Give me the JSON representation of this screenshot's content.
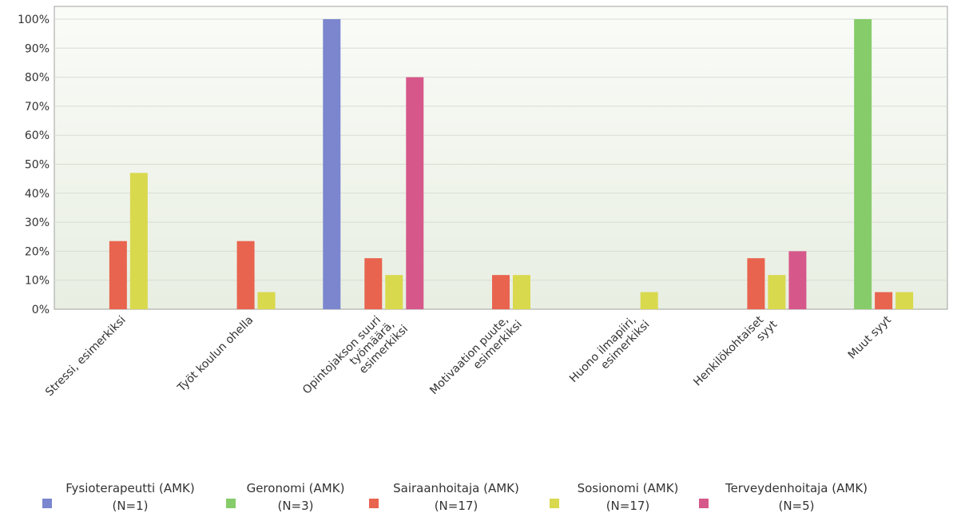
{
  "chart_data": {
    "type": "bar",
    "categories": [
      [
        "Stressi, esimerkiksi"
      ],
      [
        "Työt koulun ohella"
      ],
      [
        "Opintojakson suuri",
        "työmäärä,",
        "esimerkiksi"
      ],
      [
        "Motivaation puute,",
        "esimerkiksi"
      ],
      [
        "Huono ilmapiiri,",
        "esimerkiksi"
      ],
      [
        "Henkilökohtaiset",
        "syyt"
      ],
      [
        "Muut syyt"
      ]
    ],
    "series": [
      {
        "name": "Fysioterapeutti (AMK)",
        "n_label": "(N=1)",
        "color": "#7b86cf",
        "values": [
          0,
          0,
          100,
          0,
          0,
          0,
          0
        ]
      },
      {
        "name": "Geronomi (AMK)",
        "n_label": "(N=3)",
        "color": "#86cc6a",
        "values": [
          0,
          0,
          0,
          0,
          0,
          0,
          100
        ]
      },
      {
        "name": "Sairaanhoitaja (AMK)",
        "n_label": "(N=17)",
        "color": "#e8644f",
        "values": [
          23.5,
          23.5,
          17.6,
          11.8,
          0,
          17.6,
          5.9
        ]
      },
      {
        "name": "Sosionomi (AMK)",
        "n_label": "(N=17)",
        "color": "#d9d94e",
        "values": [
          47,
          5.9,
          11.8,
          11.8,
          5.9,
          11.8,
          5.9
        ]
      },
      {
        "name": "Terveydenhoitaja (AMK)",
        "n_label": "(N=5)",
        "color": "#d6588a",
        "values": [
          0,
          0,
          80,
          0,
          0,
          20,
          0
        ]
      }
    ],
    "ylim": [
      0,
      100
    ],
    "yticks": [
      "0%",
      "10%",
      "20%",
      "30%",
      "40%",
      "50%",
      "60%",
      "70%",
      "80%",
      "90%",
      "100%"
    ],
    "grid": true,
    "legend_position": "bottom"
  }
}
